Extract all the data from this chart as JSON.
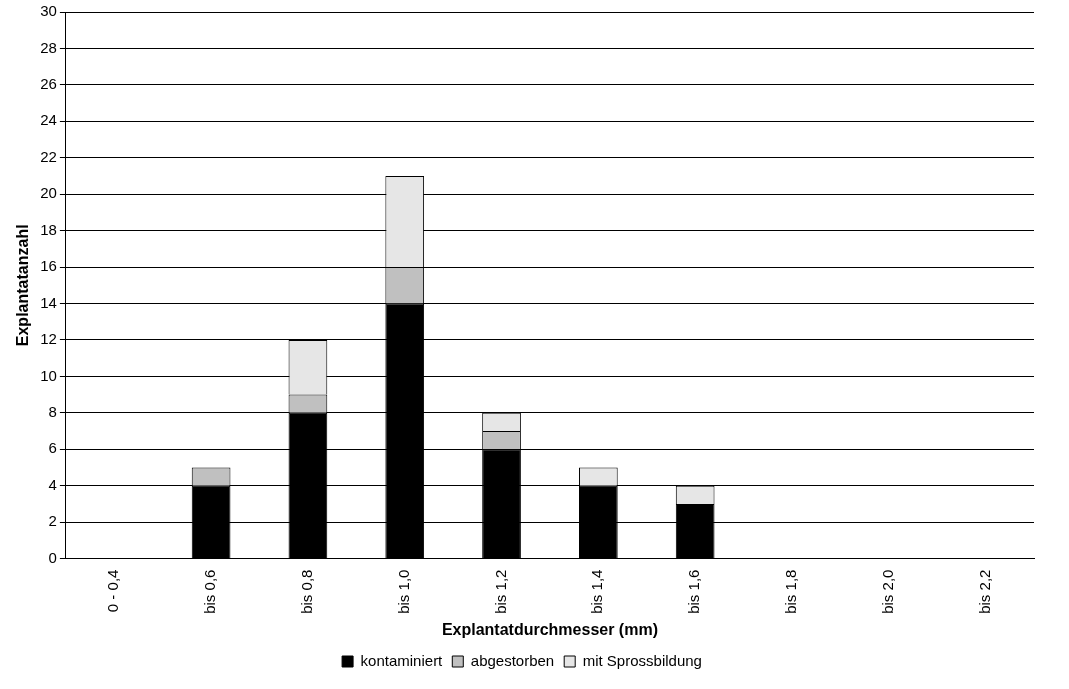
{
  "chart_data": {
    "type": "bar",
    "stacked": true,
    "xlabel": "Explantatdurchmesser (mm)",
    "ylabel": "Explantatanzahl",
    "categories": [
      "0 - 0,4",
      "bis 0,6",
      "bis 0,8",
      "bis 1,0",
      "bis 1,2",
      "bis 1,4",
      "bis 1,6",
      "bis 1,8",
      "bis 2,0",
      "bis 2,2"
    ],
    "series": [
      {
        "name": "kontaminiert",
        "color": "#000000",
        "values": [
          0,
          4,
          8,
          14,
          6,
          4,
          3,
          0,
          0,
          0
        ]
      },
      {
        "name": "abgestorben",
        "color": "#c0c0c0",
        "values": [
          0,
          1,
          1,
          2,
          1,
          0,
          0,
          0,
          0,
          0
        ]
      },
      {
        "name": "mit Sprossbildung",
        "color": "#e6e6e6",
        "values": [
          0,
          0,
          3,
          5,
          1,
          1,
          1,
          0,
          0,
          0
        ]
      }
    ],
    "ylim": [
      0,
      30
    ],
    "yticks": [
      0,
      2,
      4,
      6,
      8,
      10,
      12,
      14,
      16,
      18,
      20,
      22,
      24,
      26,
      28,
      30
    ],
    "grid": "y",
    "legend": "bottom"
  }
}
